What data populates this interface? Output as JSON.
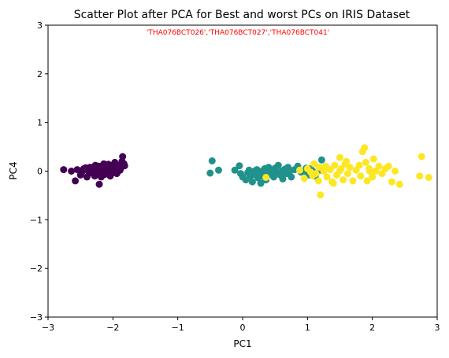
{
  "chart_data": {
    "type": "scatter",
    "title": "Scatter Plot after PCA for Best and worst PCs on IRIS Dataset",
    "annotation": "'THA076BCT026','THA076BCT027','THA076BCT041'",
    "annotation_color": "#ff0000",
    "xlabel": "PC1",
    "ylabel": "PC4",
    "xlim": [
      -3,
      3
    ],
    "ylim": [
      -3,
      3
    ],
    "xticks": [
      "−3",
      "−2",
      "−1",
      "0",
      "1",
      "2",
      "3"
    ],
    "yticks": [
      "−3",
      "−2",
      "−1",
      "0",
      "1",
      "2",
      "3"
    ],
    "grid": false,
    "colors": [
      "#440154",
      "#21918c",
      "#fde725"
    ],
    "series": [
      {
        "color": "#440154",
        "points": [
          [
            -2.76,
            0.03
          ],
          [
            -2.64,
            0.0
          ],
          [
            -2.58,
            -0.2
          ],
          [
            -2.55,
            0.03
          ],
          [
            -2.5,
            -0.08
          ],
          [
            -2.48,
            -0.02
          ],
          [
            -2.45,
            0.05
          ],
          [
            -2.4,
            -0.12
          ],
          [
            -2.38,
            0.0
          ],
          [
            -2.35,
            0.08
          ],
          [
            -2.33,
            -0.04
          ],
          [
            -2.3,
            0.04
          ],
          [
            -2.28,
            -0.1
          ],
          [
            -2.27,
            0.12
          ],
          [
            -2.25,
            0.02
          ],
          [
            -2.23,
            -0.06
          ],
          [
            -2.22,
            0.1
          ],
          [
            -2.2,
            -0.02
          ],
          [
            -2.19,
            0.06
          ],
          [
            -2.18,
            -0.12
          ],
          [
            -2.17,
            0.0
          ],
          [
            -2.15,
            0.04
          ],
          [
            -2.14,
            0.15
          ],
          [
            -2.13,
            -0.07
          ],
          [
            -2.12,
            0.09
          ],
          [
            -2.1,
            -0.01
          ],
          [
            -2.09,
            0.05
          ],
          [
            -2.08,
            -0.04
          ],
          [
            -2.07,
            0.14
          ],
          [
            -2.06,
            0.0
          ],
          [
            -2.05,
            0.07
          ],
          [
            -2.04,
            -0.1
          ],
          [
            -2.02,
            0.03
          ],
          [
            -2.01,
            0.12
          ],
          [
            -2.0,
            -0.03
          ],
          [
            -1.99,
            0.06
          ],
          [
            -1.97,
            0.18
          ],
          [
            -1.96,
            0.0
          ],
          [
            -1.95,
            0.09
          ],
          [
            -1.94,
            -0.05
          ],
          [
            -1.92,
            0.04
          ],
          [
            -1.9,
            0.12
          ],
          [
            -1.89,
            0.02
          ],
          [
            -1.87,
            0.08
          ],
          [
            -1.86,
            0.2
          ],
          [
            -1.85,
            0.3
          ],
          [
            -1.83,
            0.15
          ],
          [
            -1.82,
            0.11
          ],
          [
            -2.21,
            -0.27
          ],
          [
            -2.42,
            0.07
          ]
        ]
      },
      {
        "color": "#21918c",
        "points": [
          [
            -0.47,
            0.21
          ],
          [
            -0.5,
            -0.04
          ],
          [
            -0.37,
            0.02
          ],
          [
            -0.12,
            0.02
          ],
          [
            -0.05,
            0.11
          ],
          [
            -0.03,
            -0.05
          ],
          [
            0.0,
            -0.12
          ],
          [
            0.05,
            -0.18
          ],
          [
            0.08,
            -0.03
          ],
          [
            0.1,
            0.02
          ],
          [
            0.12,
            -0.1
          ],
          [
            0.15,
            -0.22
          ],
          [
            0.18,
            0.0
          ],
          [
            0.2,
            -0.08
          ],
          [
            0.22,
            0.03
          ],
          [
            0.24,
            -0.14
          ],
          [
            0.26,
            -0.05
          ],
          [
            0.28,
            -0.25
          ],
          [
            0.3,
            0.0
          ],
          [
            0.32,
            -0.11
          ],
          [
            0.34,
            0.05
          ],
          [
            0.36,
            -0.18
          ],
          [
            0.38,
            -0.02
          ],
          [
            0.4,
            0.08
          ],
          [
            0.42,
            -0.07
          ],
          [
            0.45,
            0.02
          ],
          [
            0.48,
            -0.12
          ],
          [
            0.5,
            0.06
          ],
          [
            0.52,
            -0.03
          ],
          [
            0.55,
            0.12
          ],
          [
            0.58,
            -0.08
          ],
          [
            0.6,
            0.0
          ],
          [
            0.62,
            -0.16
          ],
          [
            0.65,
            0.04
          ],
          [
            0.68,
            -0.05
          ],
          [
            0.7,
            0.08
          ],
          [
            0.72,
            -0.02
          ],
          [
            0.75,
            -0.12
          ],
          [
            0.8,
            0.03
          ],
          [
            0.85,
            0.1
          ],
          [
            0.9,
            -0.02
          ],
          [
            0.95,
            0.0
          ],
          [
            0.98,
            0.06
          ],
          [
            1.02,
            -0.08
          ],
          [
            1.05,
            0.05
          ],
          [
            1.08,
            0.0
          ],
          [
            1.12,
            -0.1
          ],
          [
            1.2,
            0.02
          ],
          [
            1.22,
            0.23
          ],
          [
            0.35,
            0.02
          ]
        ]
      },
      {
        "color": "#fde725",
        "points": [
          [
            0.36,
            -0.13
          ],
          [
            0.88,
            0.02
          ],
          [
            0.95,
            -0.15
          ],
          [
            1.0,
            0.05
          ],
          [
            1.05,
            -0.02
          ],
          [
            1.1,
            0.15
          ],
          [
            1.13,
            -0.05
          ],
          [
            1.18,
            0.08
          ],
          [
            1.2,
            -0.49
          ],
          [
            1.25,
            0.0
          ],
          [
            1.28,
            0.1
          ],
          [
            1.3,
            -0.12
          ],
          [
            1.35,
            0.03
          ],
          [
            1.38,
            -0.22
          ],
          [
            1.42,
            0.12
          ],
          [
            1.45,
            -0.08
          ],
          [
            1.5,
            0.28
          ],
          [
            1.52,
            0.05
          ],
          [
            1.55,
            -0.18
          ],
          [
            1.58,
            0.15
          ],
          [
            1.6,
            0.2
          ],
          [
            1.62,
            -0.05
          ],
          [
            1.65,
            0.08
          ],
          [
            1.7,
            -0.2
          ],
          [
            1.75,
            0.02
          ],
          [
            1.8,
            0.12
          ],
          [
            1.82,
            -0.1
          ],
          [
            1.85,
            0.4
          ],
          [
            1.88,
            0.48
          ],
          [
            1.9,
            0.18
          ],
          [
            1.92,
            -0.2
          ],
          [
            1.95,
            0.05
          ],
          [
            2.0,
            -0.12
          ],
          [
            2.02,
            0.25
          ],
          [
            2.05,
            0.0
          ],
          [
            2.1,
            0.1
          ],
          [
            2.15,
            -0.05
          ],
          [
            2.2,
            0.05
          ],
          [
            2.25,
            0.1
          ],
          [
            2.3,
            -0.22
          ],
          [
            2.35,
            0.0
          ],
          [
            2.42,
            -0.27
          ],
          [
            2.76,
            0.3
          ],
          [
            2.73,
            -0.1
          ],
          [
            2.87,
            -0.13
          ],
          [
            1.17,
            -0.2
          ],
          [
            1.4,
            -0.25
          ],
          [
            1.96,
            0.0
          ],
          [
            1.5,
            0.01
          ],
          [
            1.08,
            -0.09
          ]
        ]
      }
    ]
  }
}
